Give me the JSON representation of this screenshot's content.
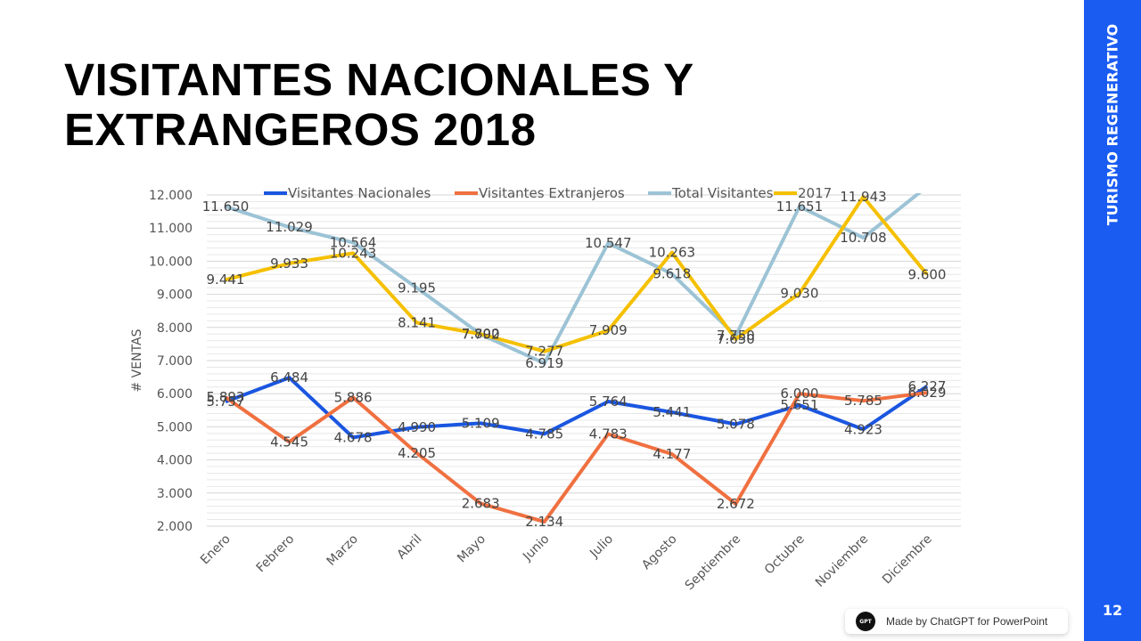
{
  "slide": {
    "title_line1": "VISITANTES NACIONALES Y",
    "title_line2": "EXTRANGEROS 2018",
    "sidebar_label": "TURISMO REGENERATIVO",
    "page_number": "12",
    "watermark_text": "Made by ChatGPT for PowerPoint",
    "watermark_logo": "GPT",
    "accent_color": "#1a5cf2"
  },
  "chart_data": {
    "type": "line",
    "title": "",
    "xlabel": "",
    "ylabel": "# VENTAS",
    "ylim": [
      2000,
      12000
    ],
    "y_major_step": 1000,
    "y_minor_step": 200,
    "grid": true,
    "legend_position": "top",
    "categories": [
      "Enero",
      "Febrero",
      "Marzo",
      "Abril",
      "Mayo",
      "Junio",
      "Julio",
      "Agosto",
      "Septiembre",
      "Octubre",
      "Noviembre",
      "Diciembre"
    ],
    "y_tick_labels": [
      "2.000",
      "3.000",
      "4.000",
      "5.000",
      "6.000",
      "7.000",
      "8.000",
      "9.000",
      "10.000",
      "11.000",
      "12.000"
    ],
    "series": [
      {
        "name": "Visitantes Nacionales",
        "color": "#1a56e0",
        "values": [
          5757,
          6484,
          4678,
          4990,
          5109,
          4785,
          5764,
          5441,
          5078,
          5651,
          4923,
          6227
        ],
        "labels": [
          "5.757",
          "6.484",
          "4.678",
          "4.990",
          "5.109",
          "4.785",
          "5.764",
          "5.441",
          "5.078",
          "5.651",
          "4.923",
          "6.227"
        ]
      },
      {
        "name": "Visitantes Extranjeros",
        "color": "#f07040",
        "values": [
          5893,
          4545,
          5886,
          4205,
          2683,
          2134,
          4783,
          4177,
          2672,
          6000,
          5785,
          6029
        ],
        "labels": [
          "5.893",
          "4.545",
          "5.886",
          "4.205",
          "2.683",
          "2.134",
          "4.783",
          "4.177",
          "2.672",
          "6.000",
          "5.785",
          "6.029"
        ]
      },
      {
        "name": "Total Visitantes",
        "color": "#9cc3d5",
        "values": [
          11650,
          11029,
          10564,
          9195,
          7792,
          6919,
          10547,
          9618,
          7750,
          11651,
          10708,
          12256
        ],
        "labels": [
          "11.650",
          "11.029",
          "10.564",
          "9.195",
          "7.792",
          "6.919",
          "10.547",
          "9.618",
          "7.750",
          "11.651",
          "10.708",
          ""
        ]
      },
      {
        "name": "2017",
        "color": "#f5c000",
        "values": [
          9441,
          9933,
          10243,
          8141,
          7800,
          7277,
          7909,
          10263,
          7650,
          9030,
          11943,
          9600
        ],
        "labels": [
          "9.441",
          "9.933",
          "10.243",
          "8.141",
          "7.800",
          "7.277",
          "7.909",
          "10.263",
          "7.650",
          "9.030",
          "11.943",
          "9.600"
        ]
      }
    ]
  }
}
